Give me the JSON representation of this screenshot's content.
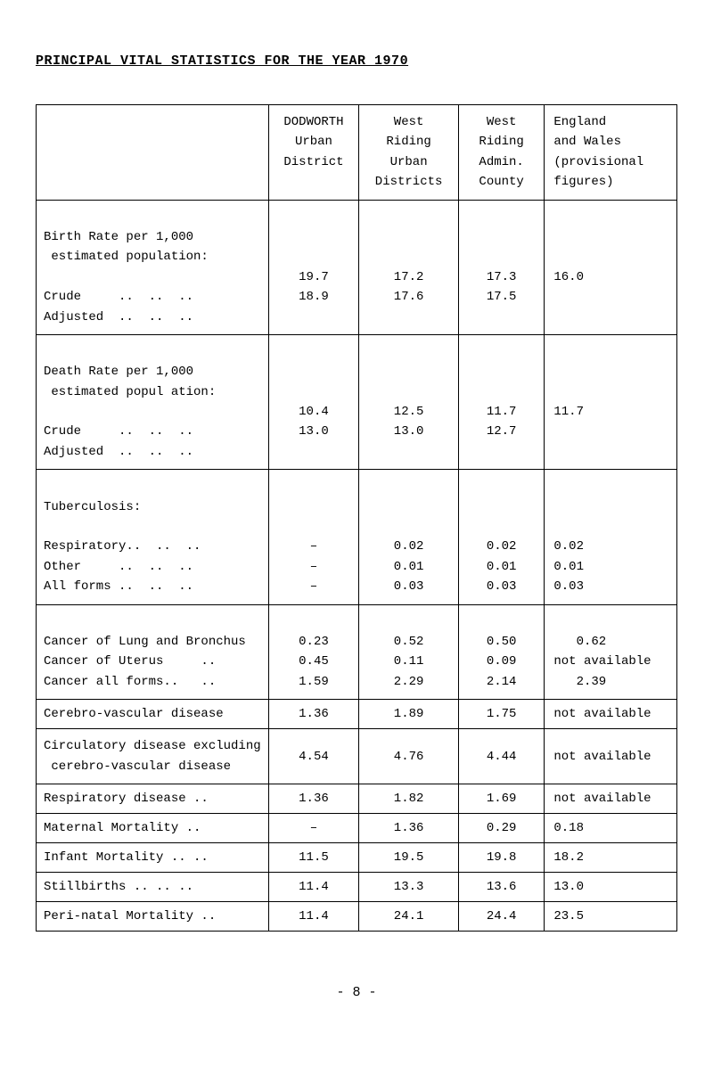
{
  "title": "PRINCIPAL VITAL STATISTICS FOR THE YEAR 1970",
  "headers": {
    "c1": "DODWORTH\nUrban\nDistrict",
    "c2": "West\nRiding\nUrban\nDistricts",
    "c3": "West\nRiding\nAdmin.\nCounty",
    "c4": "England\nand Wales\n(provisional\nfigures)"
  },
  "birth": {
    "lead": "Birth Rate per 1,000\n estimated population:",
    "crude_label": "Crude     ..  ..  ..",
    "adj_label": "Adjusted  ..  ..  ..",
    "crude": {
      "c1": "19.7",
      "c2": "17.2",
      "c3": "17.3",
      "c4": "16.0"
    },
    "adj": {
      "c1": "18.9",
      "c2": "17.6",
      "c3": "17.5",
      "c4": ""
    }
  },
  "death": {
    "lead": "Death Rate per 1,000\n estimated popul ation:",
    "crude_label": "Crude     ..  ..  ..",
    "adj_label": "Adjusted  ..  ..  ..",
    "crude": {
      "c1": "10.4",
      "c2": "12.5",
      "c3": "11.7",
      "c4": "11.7"
    },
    "adj": {
      "c1": "13.0",
      "c2": "13.0",
      "c3": "12.7",
      "c4": ""
    }
  },
  "tb": {
    "lead": "Tuberculosis:",
    "resp_label": "Respiratory..  ..  ..",
    "other_label": "Other     ..  ..  ..",
    "all_label": "All forms ..  ..  ..",
    "resp": {
      "c1": "–",
      "c2": "0.02",
      "c3": "0.02",
      "c4": "0.02"
    },
    "other": {
      "c1": "–",
      "c2": "0.01",
      "c3": "0.01",
      "c4": "0.01"
    },
    "all": {
      "c1": "–",
      "c2": "0.03",
      "c3": "0.03",
      "c4": "0.03"
    }
  },
  "cancer": {
    "lung_label": "Cancer of Lung and Bronchus",
    "uterus_label": "Cancer of Uterus     ..",
    "all_label": "Cancer all forms..   ..",
    "lung": {
      "c1": "0.23",
      "c2": "0.52",
      "c3": "0.50",
      "c4": "0.62"
    },
    "uterus": {
      "c1": "0.45",
      "c2": "0.11",
      "c3": "0.09",
      "c4": "not available"
    },
    "all": {
      "c1": "1.59",
      "c2": "2.29",
      "c3": "2.14",
      "c4": "2.39"
    }
  },
  "cvd": {
    "label": "Cerebro-vascular disease",
    "c1": "1.36",
    "c2": "1.89",
    "c3": "1.75",
    "c4": "not available"
  },
  "circ": {
    "label": "Circulatory disease excluding\n cerebro-vascular disease",
    "c1": "4.54",
    "c2": "4.76",
    "c3": "4.44",
    "c4": "not available"
  },
  "resp_dis": {
    "label": "Respiratory disease  ..",
    "c1": "1.36",
    "c2": "1.82",
    "c3": "1.69",
    "c4": "not available"
  },
  "maternal": {
    "label": "Maternal Mortality   ..",
    "c1": "–",
    "c2": "1.36",
    "c3": "0.29",
    "c4": "0.18"
  },
  "infant": {
    "label": "Infant Mortality ..  ..",
    "c1": "11.5",
    "c2": "19.5",
    "c3": "19.8",
    "c4": "18.2"
  },
  "still": {
    "label": "Stillbirths ..  ..  ..",
    "c1": "11.4",
    "c2": "13.3",
    "c3": "13.6",
    "c4": "13.0"
  },
  "peri": {
    "label": "Peri-natal Mortality  ..",
    "c1": "11.4",
    "c2": "24.1",
    "c3": "24.4",
    "c4": "23.5"
  },
  "footer": "- 8 -"
}
